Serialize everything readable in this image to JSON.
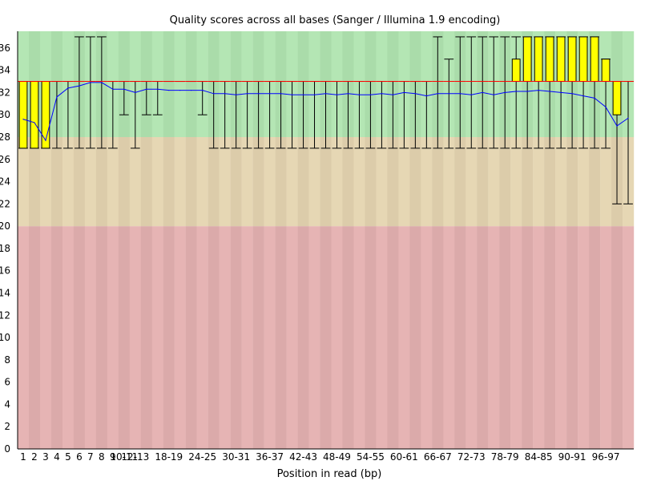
{
  "chart_data": {
    "type": "boxplot",
    "title": "Quality scores across all bases (Sanger / Illumina 1.9 encoding)",
    "xlabel": "Position in read (bp)",
    "ylabel": "",
    "ylim": [
      0,
      37.5
    ],
    "yticks": [
      0,
      2,
      4,
      6,
      8,
      10,
      12,
      14,
      16,
      18,
      20,
      22,
      24,
      26,
      28,
      30,
      32,
      34,
      36
    ],
    "quality_bands": [
      {
        "name": "poor",
        "from": 0,
        "to": 20,
        "colors": [
          "#e6b4b4",
          "#dbaaaa"
        ]
      },
      {
        "name": "reasonable",
        "from": 20,
        "to": 28,
        "colors": [
          "#e6d7b4",
          "#dcccaa"
        ]
      },
      {
        "name": "good",
        "from": 28,
        "to": 37.5,
        "colors": [
          "#b4e6b4",
          "#aadcaa"
        ]
      }
    ],
    "categories": [
      "1",
      "2",
      "3",
      "4",
      "5",
      "6",
      "7",
      "8",
      "9",
      "10-11",
      "12-13",
      "14-15",
      "16-17",
      "18-19",
      "20-21",
      "22-23",
      "24-25",
      "26-27",
      "28-29",
      "30-31",
      "32-33",
      "34-35",
      "36-37",
      "38-39",
      "40-41",
      "42-43",
      "44-45",
      "46-47",
      "48-49",
      "50-51",
      "52-53",
      "54-55",
      "56-57",
      "58-59",
      "60-61",
      "62-63",
      "64-65",
      "66-67",
      "68-69",
      "70-71",
      "72-73",
      "74-75",
      "76-77",
      "78-79",
      "80-81",
      "82-83",
      "84-85",
      "86-87",
      "88-89",
      "90-91",
      "92-93",
      "94-95",
      "96-97",
      "98-99",
      "100-101"
    ],
    "x_tick_labels": [
      "1",
      "2",
      "3",
      "4",
      "5",
      "6",
      "7",
      "8",
      "9",
      "10-11",
      "12-13",
      "",
      "",
      "18-19",
      "",
      "",
      "24-25",
      "",
      "",
      "30-31",
      "",
      "",
      "36-37",
      "",
      "",
      "42-43",
      "",
      "",
      "48-49",
      "",
      "",
      "54-55",
      "",
      "",
      "60-61",
      "",
      "",
      "66-67",
      "",
      "",
      "72-73",
      "",
      "",
      "78-79",
      "",
      "",
      "84-85",
      "",
      "",
      "90-91",
      "",
      "",
      "96-97",
      "",
      ""
    ],
    "series": [
      {
        "name": "box_lower",
        "values": [
          27,
          27,
          27,
          33,
          33,
          33,
          33,
          33,
          33,
          33,
          33,
          33,
          33,
          33,
          33,
          33,
          33,
          33,
          33,
          33,
          33,
          33,
          33,
          33,
          33,
          33,
          33,
          33,
          33,
          33,
          33,
          33,
          33,
          33,
          33,
          33,
          33,
          33,
          33,
          33,
          33,
          33,
          33,
          33,
          33,
          33,
          33,
          33,
          33,
          33,
          33,
          33,
          33,
          30,
          33
        ]
      },
      {
        "name": "box_upper",
        "values": [
          33,
          33,
          33,
          33,
          33,
          33,
          33,
          33,
          33,
          33,
          33,
          33,
          33,
          33,
          33,
          33,
          33,
          33,
          33,
          33,
          33,
          33,
          33,
          33,
          33,
          33,
          33,
          33,
          33,
          33,
          33,
          33,
          33,
          33,
          33,
          33,
          33,
          33,
          33,
          33,
          33,
          33,
          33,
          33,
          35,
          37,
          37,
          37,
          37,
          37,
          37,
          37,
          35,
          33,
          33
        ]
      },
      {
        "name": "median",
        "values": [
          33,
          33,
          33,
          33,
          33,
          33,
          33,
          33,
          33,
          33,
          33,
          33,
          33,
          33,
          33,
          33,
          33,
          33,
          33,
          33,
          33,
          33,
          33,
          33,
          33,
          33,
          33,
          33,
          33,
          33,
          33,
          33,
          33,
          33,
          33,
          33,
          33,
          33,
          33,
          33,
          33,
          33,
          33,
          33,
          33,
          33,
          33,
          33,
          33,
          33,
          33,
          33,
          33,
          33,
          33
        ]
      },
      {
        "name": "whisker_low",
        "values": [
          27,
          27,
          27,
          27,
          27,
          27,
          27,
          27,
          27,
          30,
          27,
          30,
          30,
          33,
          33,
          33,
          30,
          27,
          27,
          27,
          27,
          27,
          27,
          27,
          27,
          27,
          27,
          27,
          27,
          27,
          27,
          27,
          27,
          27,
          27,
          27,
          27,
          27,
          27,
          27,
          27,
          27,
          27,
          27,
          27,
          27,
          27,
          27,
          27,
          27,
          27,
          27,
          27,
          22,
          22
        ]
      },
      {
        "name": "whisker_high",
        "values": [
          33,
          33,
          33,
          33,
          33,
          37,
          37,
          37,
          33,
          33,
          33,
          33,
          33,
          33,
          33,
          33,
          33,
          33,
          33,
          33,
          33,
          33,
          33,
          33,
          33,
          33,
          33,
          33,
          33,
          33,
          33,
          33,
          33,
          33,
          33,
          33,
          33,
          37,
          35,
          37,
          37,
          37,
          37,
          37,
          37,
          37,
          37,
          37,
          37,
          37,
          37,
          37,
          35,
          33,
          33
        ]
      },
      {
        "name": "mean",
        "values": [
          29.6,
          29.3,
          27.7,
          31.6,
          32.4,
          32.6,
          32.9,
          32.9,
          32.3,
          32.3,
          32.0,
          32.3,
          32.3,
          32.2,
          32.2,
          32.2,
          32.2,
          31.9,
          31.9,
          31.8,
          31.9,
          31.9,
          31.9,
          31.9,
          31.8,
          31.8,
          31.8,
          31.9,
          31.8,
          31.9,
          31.8,
          31.8,
          31.9,
          31.8,
          32.0,
          31.9,
          31.7,
          31.9,
          31.9,
          31.9,
          31.8,
          32.0,
          31.8,
          32.0,
          32.1,
          32.1,
          32.2,
          32.1,
          32.0,
          31.9,
          31.7,
          31.5,
          30.7,
          29.0,
          29.7
        ]
      }
    ],
    "colors": {
      "box_fill": "#ffff00",
      "box_stroke": "#000000",
      "median": "#ff0000",
      "mean_line": "#0000ff",
      "whisker": "#000000",
      "axis": "#000000"
    }
  }
}
